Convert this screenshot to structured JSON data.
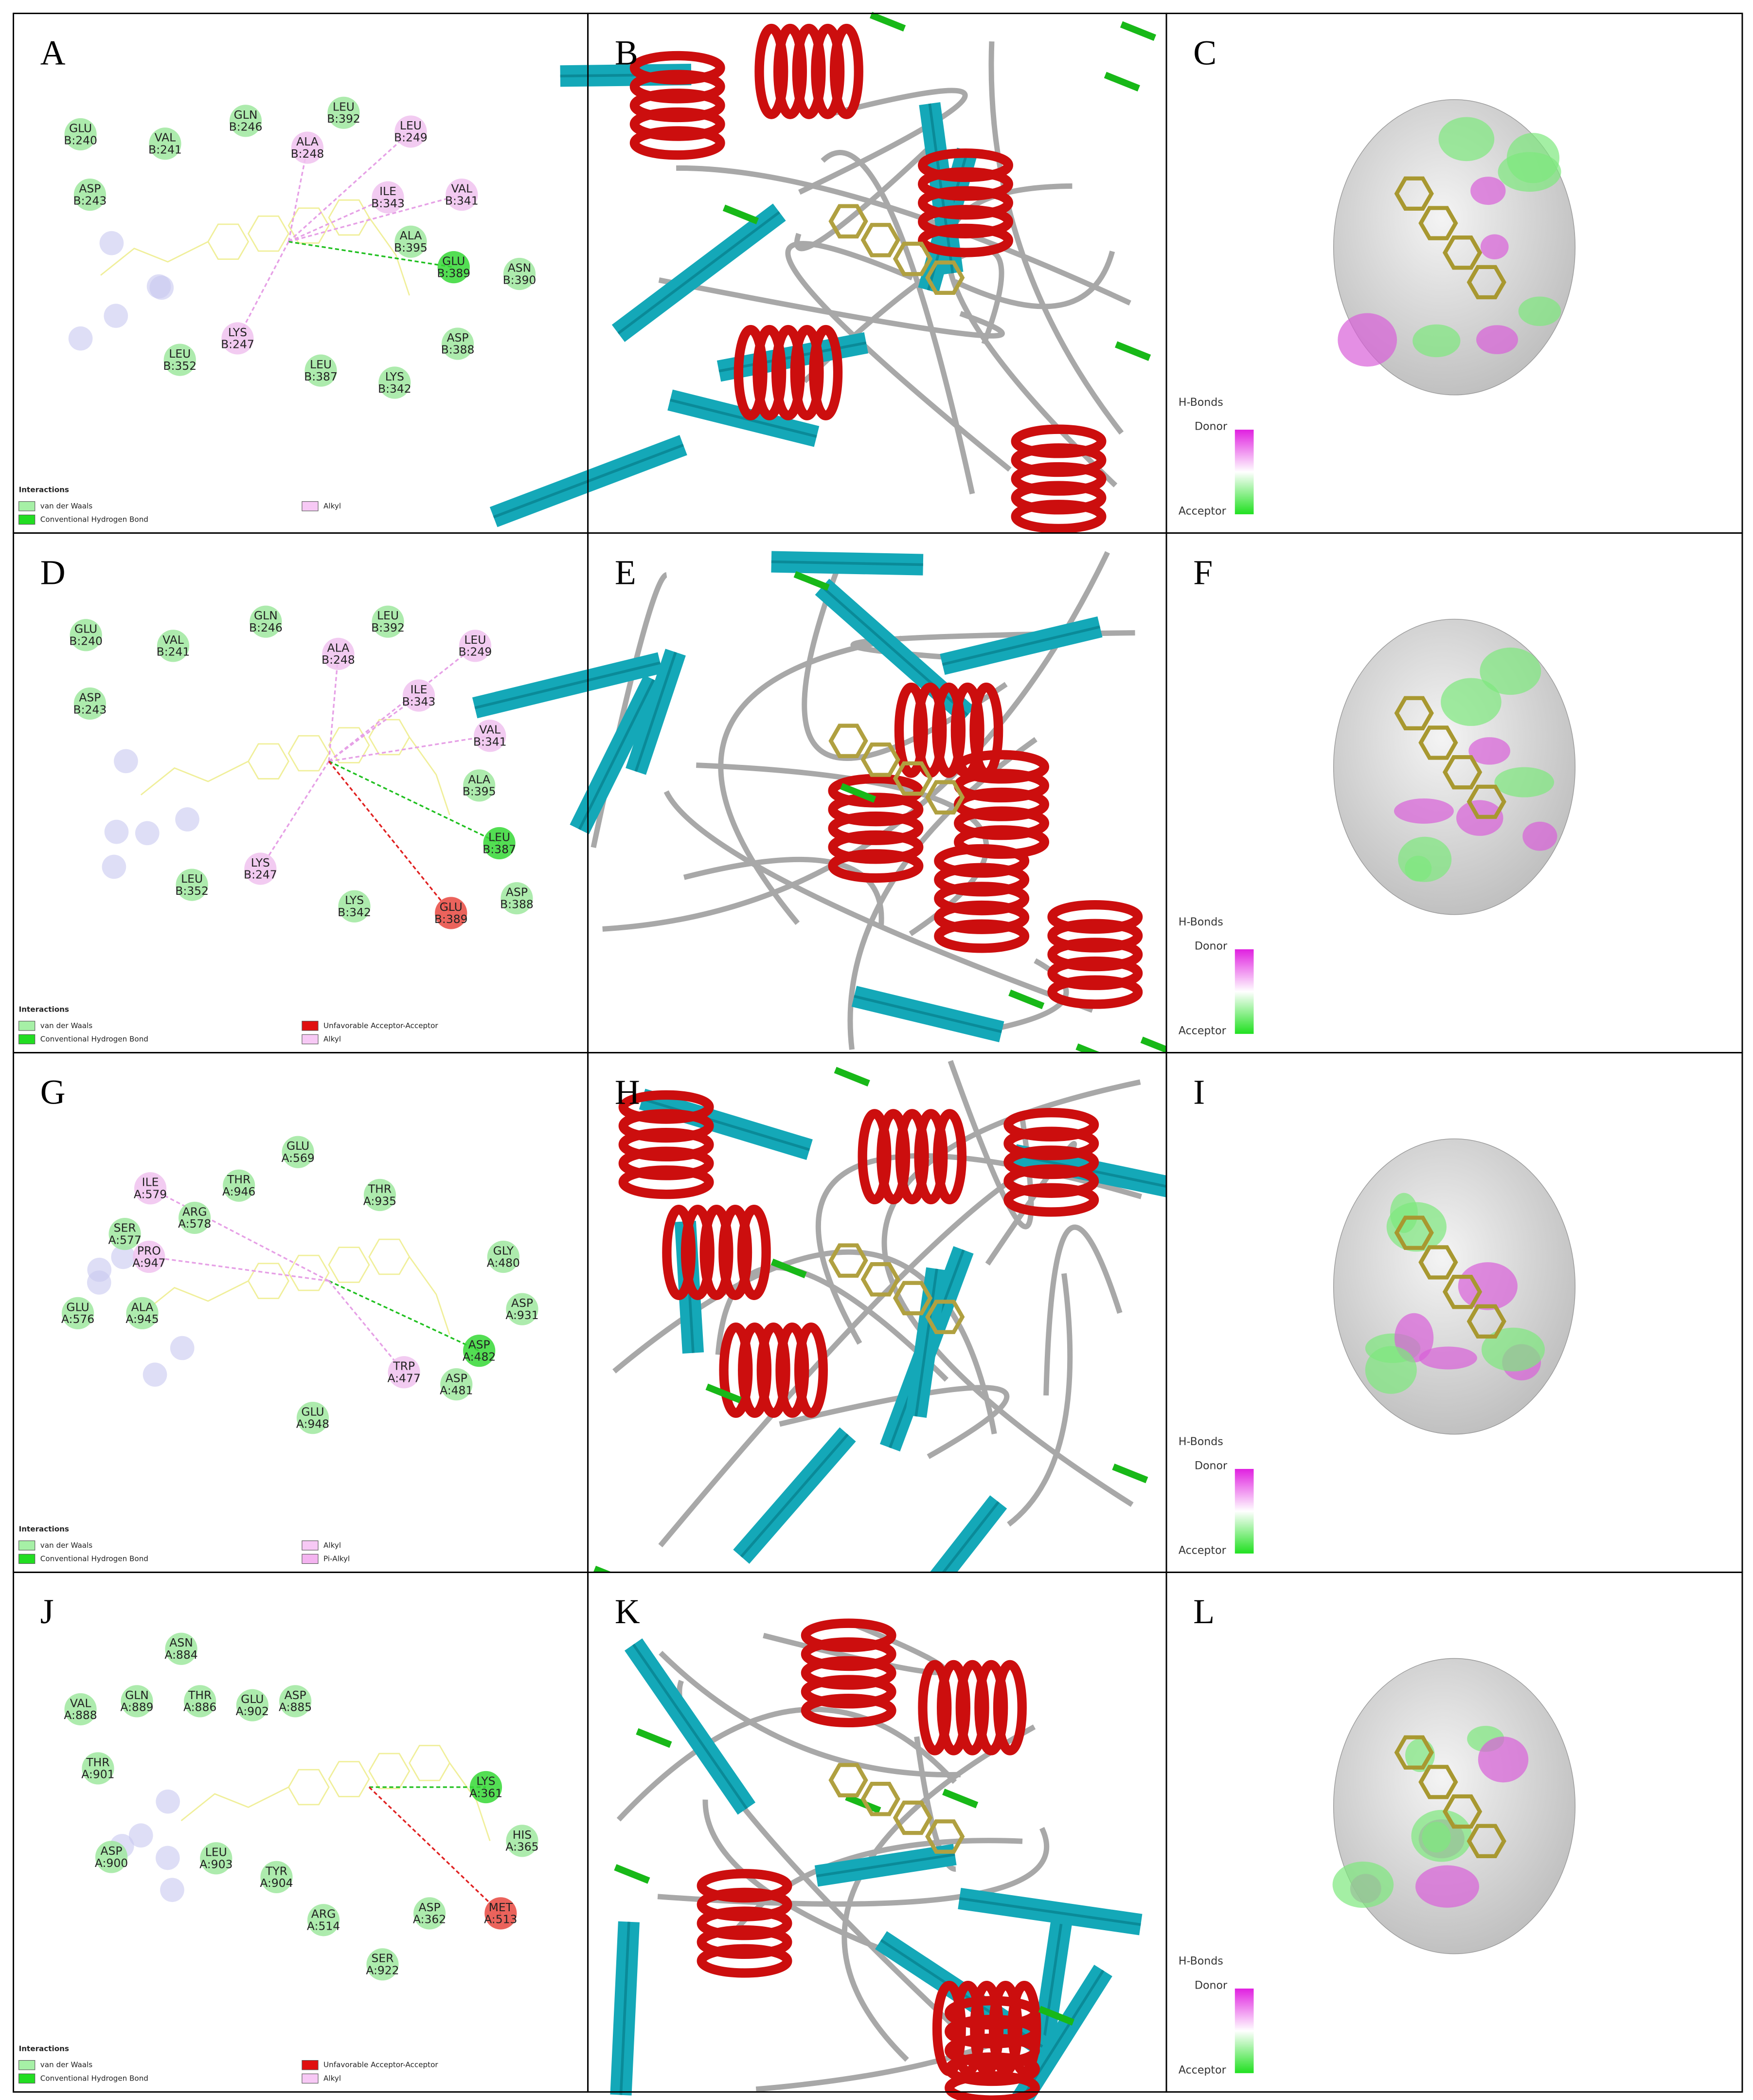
{
  "panels": [
    {
      "label": "A",
      "type": "interaction",
      "residues": [
        {
          "name": "GLU",
          "id": "B:240",
          "color": "#9fe89f"
        },
        {
          "name": "VAL",
          "id": "B:241",
          "color": "#9fe89f"
        },
        {
          "name": "GLN",
          "id": "B:246",
          "color": "#9fe89f"
        },
        {
          "name": "LEU",
          "id": "B:392",
          "color": "#9fe89f"
        },
        {
          "name": "ALA",
          "id": "B:248",
          "color": "#f0c2ee"
        },
        {
          "name": "LEU",
          "id": "B:249",
          "color": "#f0c2ee"
        },
        {
          "name": "ASP",
          "id": "B:243",
          "color": "#9fe89f"
        },
        {
          "name": "ILE",
          "id": "B:343",
          "color": "#f0c2ee"
        },
        {
          "name": "VAL",
          "id": "B:341",
          "color": "#f0c2ee"
        },
        {
          "name": "ALA",
          "id": "B:395",
          "color": "#9fe89f"
        },
        {
          "name": "GLU",
          "id": "B:389",
          "color": "#35d835"
        },
        {
          "name": "ASN",
          "id": "B:390",
          "color": "#9fe89f"
        },
        {
          "name": "LYS",
          "id": "B:247",
          "color": "#f0c2ee"
        },
        {
          "name": "ASP",
          "id": "B:388",
          "color": "#9fe89f"
        },
        {
          "name": "LEU",
          "id": "B:352",
          "color": "#9fe89f"
        },
        {
          "name": "LEU",
          "id": "B:387",
          "color": "#9fe89f"
        },
        {
          "name": "LYS",
          "id": "B:342",
          "color": "#9fe89f"
        }
      ],
      "legend": {
        "title": "Interactions",
        "items": [
          {
            "text": "van der Waals",
            "color": "#a6f0a6"
          },
          {
            "text": "Conventional Hydrogen Bond",
            "color": "#22dd22"
          },
          {
            "text": "Alkyl",
            "color": "#f7c9f5"
          }
        ]
      }
    },
    {
      "label": "B",
      "type": "ribbon"
    },
    {
      "label": "C",
      "type": "surface",
      "hbonds": {
        "title": "H-Bonds",
        "donor": "Donor",
        "acceptor": "Acceptor"
      }
    },
    {
      "label": "D",
      "type": "interaction",
      "residues": [
        {
          "name": "GLU",
          "id": "B:240",
          "color": "#9fe89f"
        },
        {
          "name": "VAL",
          "id": "B:241",
          "color": "#9fe89f"
        },
        {
          "name": "GLN",
          "id": "B:246",
          "color": "#9fe89f"
        },
        {
          "name": "LEU",
          "id": "B:392",
          "color": "#9fe89f"
        },
        {
          "name": "ALA",
          "id": "B:248",
          "color": "#f0c2ee"
        },
        {
          "name": "LEU",
          "id": "B:249",
          "color": "#f0c2ee"
        },
        {
          "name": "ASP",
          "id": "B:243",
          "color": "#9fe89f"
        },
        {
          "name": "ILE",
          "id": "B:343",
          "color": "#f0c2ee"
        },
        {
          "name": "VAL",
          "id": "B:341",
          "color": "#f0c2ee"
        },
        {
          "name": "ALA",
          "id": "B:395",
          "color": "#9fe89f"
        },
        {
          "name": "LEU",
          "id": "B:387",
          "color": "#35d835"
        },
        {
          "name": "LEU",
          "id": "B:352",
          "color": "#9fe89f"
        },
        {
          "name": "LYS",
          "id": "B:247",
          "color": "#f0c2ee"
        },
        {
          "name": "LYS",
          "id": "B:342",
          "color": "#9fe89f"
        },
        {
          "name": "GLU",
          "id": "B:389",
          "color": "#e8483f"
        },
        {
          "name": "ASP",
          "id": "B:388",
          "color": "#9fe89f"
        }
      ],
      "legend": {
        "title": "Interactions",
        "items": [
          {
            "text": "van der Waals",
            "color": "#a6f0a6"
          },
          {
            "text": "Conventional Hydrogen Bond",
            "color": "#22dd22"
          },
          {
            "text": "Unfavorable Acceptor-Acceptor",
            "color": "#e01010"
          },
          {
            "text": "Alkyl",
            "color": "#f7c9f5"
          }
        ]
      }
    },
    {
      "label": "E",
      "type": "ribbon"
    },
    {
      "label": "F",
      "type": "surface",
      "hbonds": {
        "title": "H-Bonds",
        "donor": "Donor",
        "acceptor": "Acceptor"
      }
    },
    {
      "label": "G",
      "type": "interaction",
      "residues": [
        {
          "name": "ILE",
          "id": "A:579",
          "color": "#f0c2ee"
        },
        {
          "name": "THR",
          "id": "A:946",
          "color": "#9fe89f"
        },
        {
          "name": "GLU",
          "id": "A:569",
          "color": "#9fe89f"
        },
        {
          "name": "THR",
          "id": "A:935",
          "color": "#9fe89f"
        },
        {
          "name": "ARG",
          "id": "A:578",
          "color": "#9fe89f"
        },
        {
          "name": "SER",
          "id": "A:577",
          "color": "#9fe89f"
        },
        {
          "name": "PRO",
          "id": "A:947",
          "color": "#f0c2ee"
        },
        {
          "name": "GLY",
          "id": "A:480",
          "color": "#9fe89f"
        },
        {
          "name": "GLU",
          "id": "A:576",
          "color": "#9fe89f"
        },
        {
          "name": "ALA",
          "id": "A:945",
          "color": "#9fe89f"
        },
        {
          "name": "ASP",
          "id": "A:931",
          "color": "#9fe89f"
        },
        {
          "name": "ASP",
          "id": "A:482",
          "color": "#35d835"
        },
        {
          "name": "TRP",
          "id": "A:477",
          "color": "#f0c2ee"
        },
        {
          "name": "ASP",
          "id": "A:481",
          "color": "#9fe89f"
        },
        {
          "name": "GLU",
          "id": "A:948",
          "color": "#9fe89f"
        }
      ],
      "legend": {
        "title": "Interactions",
        "items": [
          {
            "text": "van der Waals",
            "color": "#a6f0a6"
          },
          {
            "text": "Conventional Hydrogen Bond",
            "color": "#22dd22"
          },
          {
            "text": "Alkyl",
            "color": "#f7c9f5"
          },
          {
            "text": "Pi-Alkyl",
            "color": "#f4b4f0"
          }
        ]
      }
    },
    {
      "label": "H",
      "type": "ribbon"
    },
    {
      "label": "I",
      "type": "surface",
      "hbonds": {
        "title": "H-Bonds",
        "donor": "Donor",
        "acceptor": "Acceptor"
      }
    },
    {
      "label": "J",
      "type": "interaction",
      "residues": [
        {
          "name": "ASN",
          "id": "A:884",
          "color": "#9fe89f"
        },
        {
          "name": "VAL",
          "id": "A:888",
          "color": "#9fe89f"
        },
        {
          "name": "GLN",
          "id": "A:889",
          "color": "#9fe89f"
        },
        {
          "name": "THR",
          "id": "A:886",
          "color": "#9fe89f"
        },
        {
          "name": "GLU",
          "id": "A:902",
          "color": "#9fe89f"
        },
        {
          "name": "ASP",
          "id": "A:885",
          "color": "#9fe89f"
        },
        {
          "name": "THR",
          "id": "A:901",
          "color": "#9fe89f"
        },
        {
          "name": "LYS",
          "id": "A:361",
          "color": "#35d835"
        },
        {
          "name": "HIS",
          "id": "A:365",
          "color": "#9fe89f"
        },
        {
          "name": "ASP",
          "id": "A:900",
          "color": "#9fe89f"
        },
        {
          "name": "LEU",
          "id": "A:903",
          "color": "#9fe89f"
        },
        {
          "name": "TYR",
          "id": "A:904",
          "color": "#9fe89f"
        },
        {
          "name": "ARG",
          "id": "A:514",
          "color": "#9fe89f"
        },
        {
          "name": "ASP",
          "id": "A:362",
          "color": "#9fe89f"
        },
        {
          "name": "MET",
          "id": "A:513",
          "color": "#e8483f"
        },
        {
          "name": "SER",
          "id": "A:922",
          "color": "#9fe89f"
        }
      ],
      "legend": {
        "title": "Interactions",
        "items": [
          {
            "text": "van der Waals",
            "color": "#a6f0a6"
          },
          {
            "text": "Conventional Hydrogen Bond",
            "color": "#22dd22"
          },
          {
            "text": "Unfavorable Acceptor-Acceptor",
            "color": "#e01010"
          },
          {
            "text": "Alkyl",
            "color": "#f7c9f5"
          }
        ]
      }
    },
    {
      "label": "K",
      "type": "ribbon"
    },
    {
      "label": "L",
      "type": "surface",
      "hbonds": {
        "title": "H-Bonds",
        "donor": "Donor",
        "acceptor": "Acceptor"
      }
    }
  ]
}
